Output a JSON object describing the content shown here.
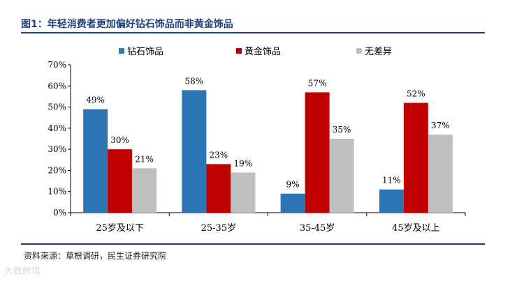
{
  "figure": {
    "title": "图1：年轻消费者更加偏好钻石饰品而非黄金饰品",
    "source": "资料来源：草根调研，民生证券研究院",
    "watermark": "大数跨境"
  },
  "chart_data": {
    "type": "bar",
    "categories": [
      "25岁及以下",
      "25-35岁",
      "35-45岁",
      "45岁及以上"
    ],
    "series": [
      {
        "name": "钻石饰品",
        "values": [
          49,
          58,
          9,
          11
        ],
        "color": "#2E75B6"
      },
      {
        "name": "黄金饰品",
        "values": [
          30,
          23,
          57,
          52
        ],
        "color": "#C00000"
      },
      {
        "name": "无差异",
        "values": [
          21,
          19,
          35,
          37
        ],
        "color": "#BFBFBF"
      }
    ],
    "value_labels": [
      [
        "49%",
        "58%",
        "9%",
        "11%"
      ],
      [
        "30%",
        "23%",
        "57%",
        "52%"
      ],
      [
        "21%",
        "19%",
        "35%",
        "37%"
      ]
    ],
    "ylim": [
      0,
      70
    ],
    "yticks": [
      0,
      10,
      20,
      30,
      40,
      50,
      60,
      70
    ],
    "ytick_labels": [
      "0%",
      "10%",
      "20%",
      "30%",
      "40%",
      "50%",
      "60%",
      "70%"
    ],
    "grid": false,
    "legend_position": "top"
  }
}
